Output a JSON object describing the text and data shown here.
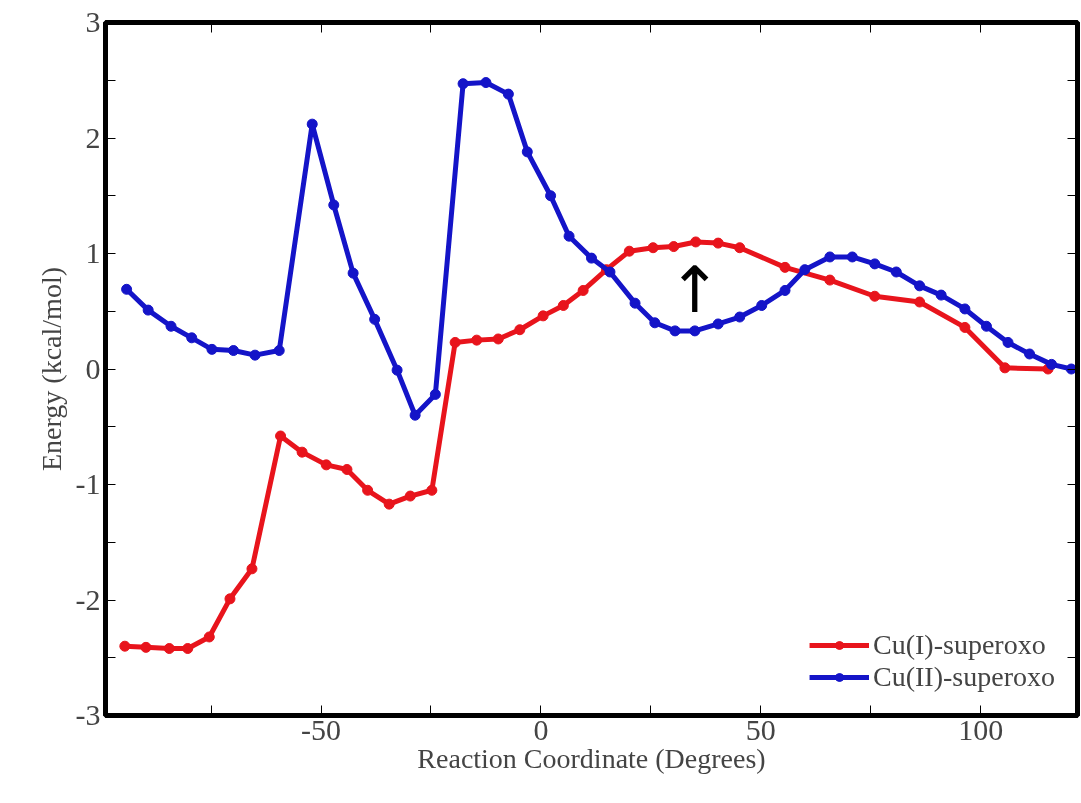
{
  "chart_data": {
    "type": "line",
    "xlabel": "Reaction Coordinate (Degrees)",
    "ylabel": "Energy (kcal/mol)",
    "xlim": [
      -99,
      122
    ],
    "ylim": [
      -3,
      3
    ],
    "xticks": [
      {
        "value": -75,
        "label": null
      },
      -50,
      {
        "value": -25,
        "label": null
      },
      0,
      {
        "value": 25,
        "label": null
      },
      50,
      {
        "value": 75,
        "label": null
      },
      100
    ],
    "yticks": [
      -3,
      {
        "value": -2.5,
        "label": null
      },
      -2,
      {
        "value": -1.5,
        "label": null
      },
      -1,
      {
        "value": -0.5,
        "label": null
      },
      0,
      {
        "value": 0.5,
        "label": null
      },
      1,
      {
        "value": 1.5,
        "label": null
      },
      2,
      {
        "value": 2.5,
        "label": null
      },
      3
    ],
    "grid": false,
    "legend": "bottom right",
    "marker": "circle",
    "line_style": "solid",
    "annotations": [
      {
        "text": "↑",
        "x": 35,
        "y": 0.33
      }
    ],
    "series": [
      {
        "name": "Cu(I)-superoxo",
        "color": "#e8141c",
        "x": [
          -94.6,
          -89.8,
          -84.5,
          -80.3,
          -75.4,
          -70.7,
          -65.7,
          -59.2,
          -54.3,
          -48.8,
          -44.1,
          -39.4,
          -34.5,
          -29.7,
          -24.8,
          -19.5,
          -14.6,
          -9.7,
          -4.8,
          0.5,
          5.1,
          9.6,
          14.9,
          20.1,
          25.5,
          30.2,
          35.2,
          40.3,
          45.2,
          55.5,
          65.7,
          75.9,
          86.1,
          96.4,
          105.5,
          115.3
        ],
        "values": [
          -2.4,
          -2.41,
          -2.42,
          -2.42,
          -2.32,
          -1.99,
          -1.73,
          -0.58,
          -0.72,
          -0.83,
          -0.87,
          -1.05,
          -1.17,
          -1.1,
          -1.05,
          0.23,
          0.25,
          0.26,
          0.34,
          0.46,
          0.55,
          0.68,
          0.86,
          1.02,
          1.05,
          1.06,
          1.1,
          1.09,
          1.05,
          0.88,
          0.77,
          0.63,
          0.58,
          0.36,
          0.01,
          0
        ]
      },
      {
        "name": "Cu(II)-superoxo",
        "color": "#1414c8",
        "x": [
          -94.2,
          -89.3,
          -84.1,
          -79.4,
          -74.8,
          -69.9,
          -65,
          -59.5,
          -52,
          -47.1,
          -42.7,
          -37.8,
          -32.7,
          -28.6,
          -24,
          -17.7,
          -12.5,
          -7.4,
          -3.1,
          2.2,
          6.4,
          11.5,
          15.7,
          21.4,
          25.9,
          30.5,
          35,
          40.3,
          45.2,
          50.2,
          55.5,
          60,
          65.7,
          70.8,
          75.9,
          80.8,
          86.1,
          91,
          96.4,
          101.3,
          106.2,
          111.1,
          116.1,
          120.6
        ],
        "values": [
          0.69,
          0.51,
          0.37,
          0.27,
          0.17,
          0.16,
          0.12,
          0.16,
          2.12,
          1.42,
          0.83,
          0.43,
          -0.01,
          -0.4,
          -0.22,
          2.47,
          2.48,
          2.38,
          1.88,
          1.5,
          1.15,
          0.96,
          0.84,
          0.57,
          0.4,
          0.33,
          0.33,
          0.39,
          0.45,
          0.55,
          0.68,
          0.86,
          0.97,
          0.97,
          0.91,
          0.84,
          0.72,
          0.64,
          0.52,
          0.37,
          0.23,
          0.13,
          0.04,
          0
        ]
      }
    ]
  }
}
